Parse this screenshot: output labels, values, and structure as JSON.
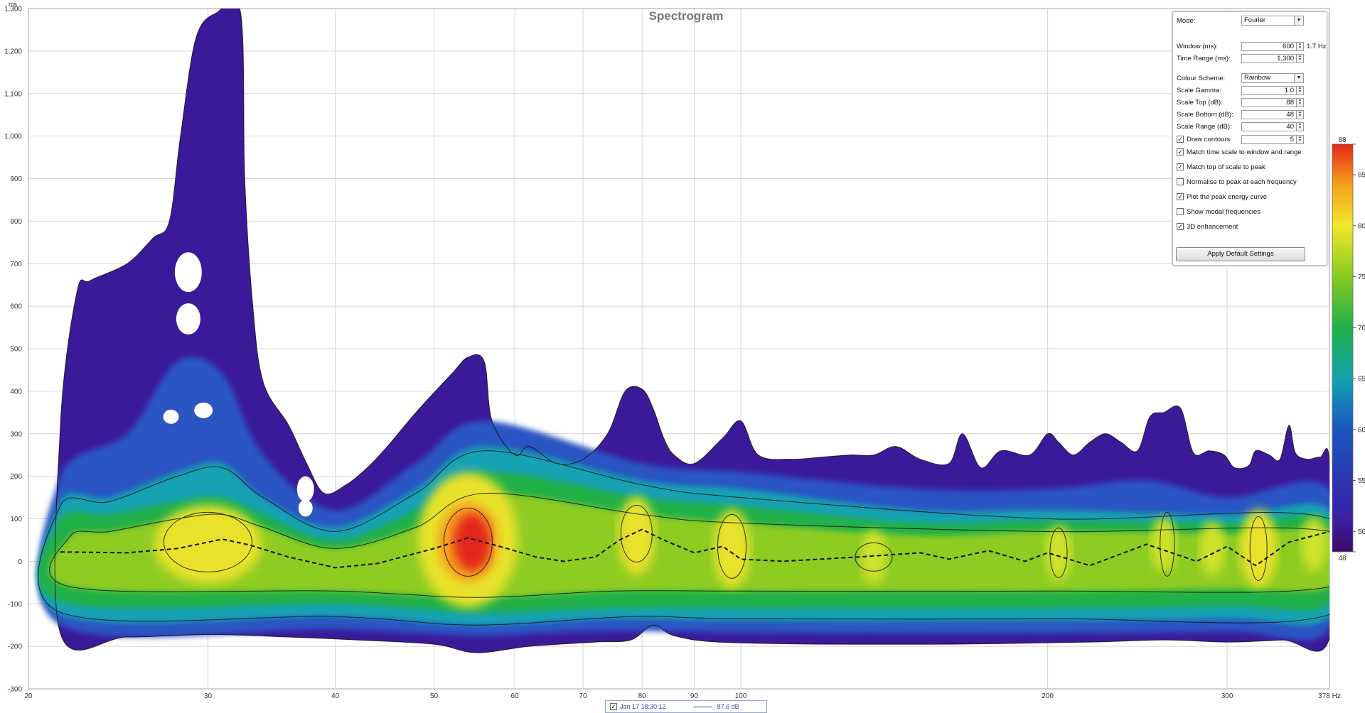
{
  "chart_data": {
    "type": "heatmap",
    "title": "Spectrogram",
    "xlabel": "Hz",
    "ylabel": "ms",
    "x_scale": "log",
    "xlim": [
      20,
      378
    ],
    "ylim": [
      -300,
      1300
    ],
    "x_ticks": [
      20,
      30,
      40,
      50,
      60,
      70,
      80,
      90,
      100,
      200,
      300,
      378
    ],
    "x_tick_labels": [
      "20",
      "30",
      "40",
      "50",
      "60",
      "70",
      "80",
      "90",
      "100",
      "200",
      "300",
      "378 Hz"
    ],
    "y_ticks": [
      -300,
      -200,
      -100,
      0,
      100,
      200,
      300,
      400,
      500,
      600,
      700,
      800,
      900,
      1000,
      1100,
      1200,
      1300
    ],
    "y_tick_labels": [
      "-300",
      "-200",
      "-100",
      "0",
      "100",
      "200",
      "300",
      "400",
      "500",
      "600",
      "700",
      "800",
      "900",
      "1,000",
      "1,100",
      "1,200",
      "1,300"
    ],
    "grid": true,
    "colour_scale": {
      "min": 48,
      "max": 88,
      "ticks": [
        48,
        50,
        55,
        60,
        65,
        70,
        75,
        80,
        85,
        88
      ],
      "colors": [
        "#3a0a6a",
        "#3a1fa5",
        "#1a55c0",
        "#12a0b0",
        "#1fb04a",
        "#8ccc1e",
        "#f0e82a",
        "#f5a01a",
        "#e5281a"
      ]
    },
    "peak_energy_curve": {
      "x": [
        21.5,
        25,
        28,
        30,
        31,
        33,
        36,
        40,
        44,
        50,
        54,
        58,
        63,
        67,
        72,
        76,
        80,
        84,
        90,
        96,
        100,
        110,
        130,
        150,
        160,
        175,
        190,
        200,
        220,
        250,
        280,
        300,
        320,
        345,
        378
      ],
      "y": [
        22,
        20,
        30,
        45,
        52,
        38,
        10,
        -15,
        -5,
        30,
        55,
        35,
        10,
        0,
        10,
        50,
        75,
        50,
        20,
        35,
        5,
        0,
        10,
        20,
        5,
        25,
        0,
        20,
        -10,
        40,
        0,
        35,
        -10,
        45,
        70
      ]
    },
    "peaks": [
      {
        "x": 54,
        "y": 50,
        "level": 87.6
      },
      {
        "x": 30,
        "y": 40,
        "level": 79
      },
      {
        "x": 79,
        "y": 60,
        "level": 79
      },
      {
        "x": 98,
        "y": 30,
        "level": 76
      },
      {
        "x": 135,
        "y": 10,
        "level": 73
      },
      {
        "x": 205,
        "y": 20,
        "level": 74
      },
      {
        "x": 260,
        "y": 40,
        "level": 75
      },
      {
        "x": 290,
        "y": 30,
        "level": 74
      },
      {
        "x": 322,
        "y": 30,
        "level": 76
      },
      {
        "x": 365,
        "y": 40,
        "level": 74
      }
    ]
  },
  "settings": {
    "mode_label": "Mode:",
    "mode_value": "Fourier",
    "window_label": "Window (ms):",
    "window_value": "600",
    "window_unit": "1.7 Hz",
    "time_range_label": "Time Range (ms):",
    "time_range_value": "1,300",
    "colour_scheme_label": "Colour Scheme:",
    "colour_scheme_value": "Rainbow",
    "scale_gamma_label": "Scale Gamma:",
    "scale_gamma_value": "1.0",
    "scale_top_label": "Scale Top (dB):",
    "scale_top_value": "88",
    "scale_bottom_label": "Scale Bottom (dB):",
    "scale_bottom_value": "48",
    "scale_range_label": "Scale Range (dB):",
    "scale_range_value": "40",
    "draw_contours_label": "Draw contours",
    "draw_contours_checked": true,
    "draw_contours_value": "5",
    "options": [
      {
        "label": "Match time scale to window and range",
        "checked": true
      },
      {
        "label": "Match top of scale to peak",
        "checked": true
      },
      {
        "label": "Normalise to peak at each frequency",
        "checked": false
      },
      {
        "label": "Plot the peak energy curve",
        "checked": true
      },
      {
        "label": "Show modal frequencies",
        "checked": false
      },
      {
        "label": "3D enhancement",
        "checked": true
      }
    ],
    "apply_button": "Apply Default Settings"
  },
  "legend": {
    "checked": true,
    "measurement": "Jan 17 18:30:12",
    "peak_value": "87.6 dB"
  }
}
